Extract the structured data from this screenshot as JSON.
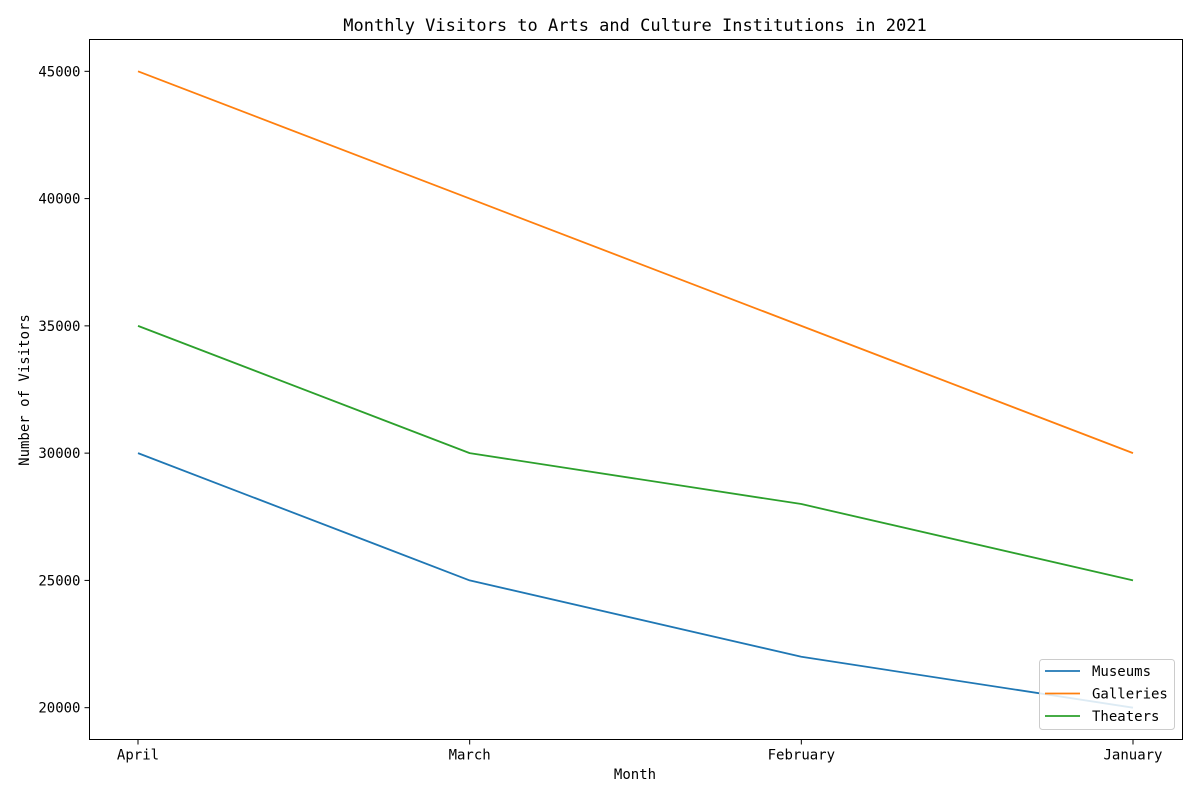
{
  "chart_data": {
    "type": "line",
    "title": "Monthly Visitors to Arts and Culture Institutions in 2021",
    "xlabel": "Month",
    "ylabel": "Number of Visitors",
    "categories": [
      "April",
      "March",
      "February",
      "January"
    ],
    "series": [
      {
        "name": "Museums",
        "color": "#1f77b4",
        "values": [
          30000,
          25000,
          22000,
          20000
        ]
      },
      {
        "name": "Galleries",
        "color": "#ff7f0e",
        "values": [
          45000,
          40000,
          35000,
          30000
        ]
      },
      {
        "name": "Theaters",
        "color": "#2ca02c",
        "values": [
          35000,
          30000,
          28000,
          25000
        ]
      }
    ],
    "yticks": [
      20000,
      25000,
      30000,
      35000,
      40000,
      45000
    ],
    "ylim": [
      18750,
      46250
    ],
    "grid": false,
    "legend_position": "lower-right"
  }
}
